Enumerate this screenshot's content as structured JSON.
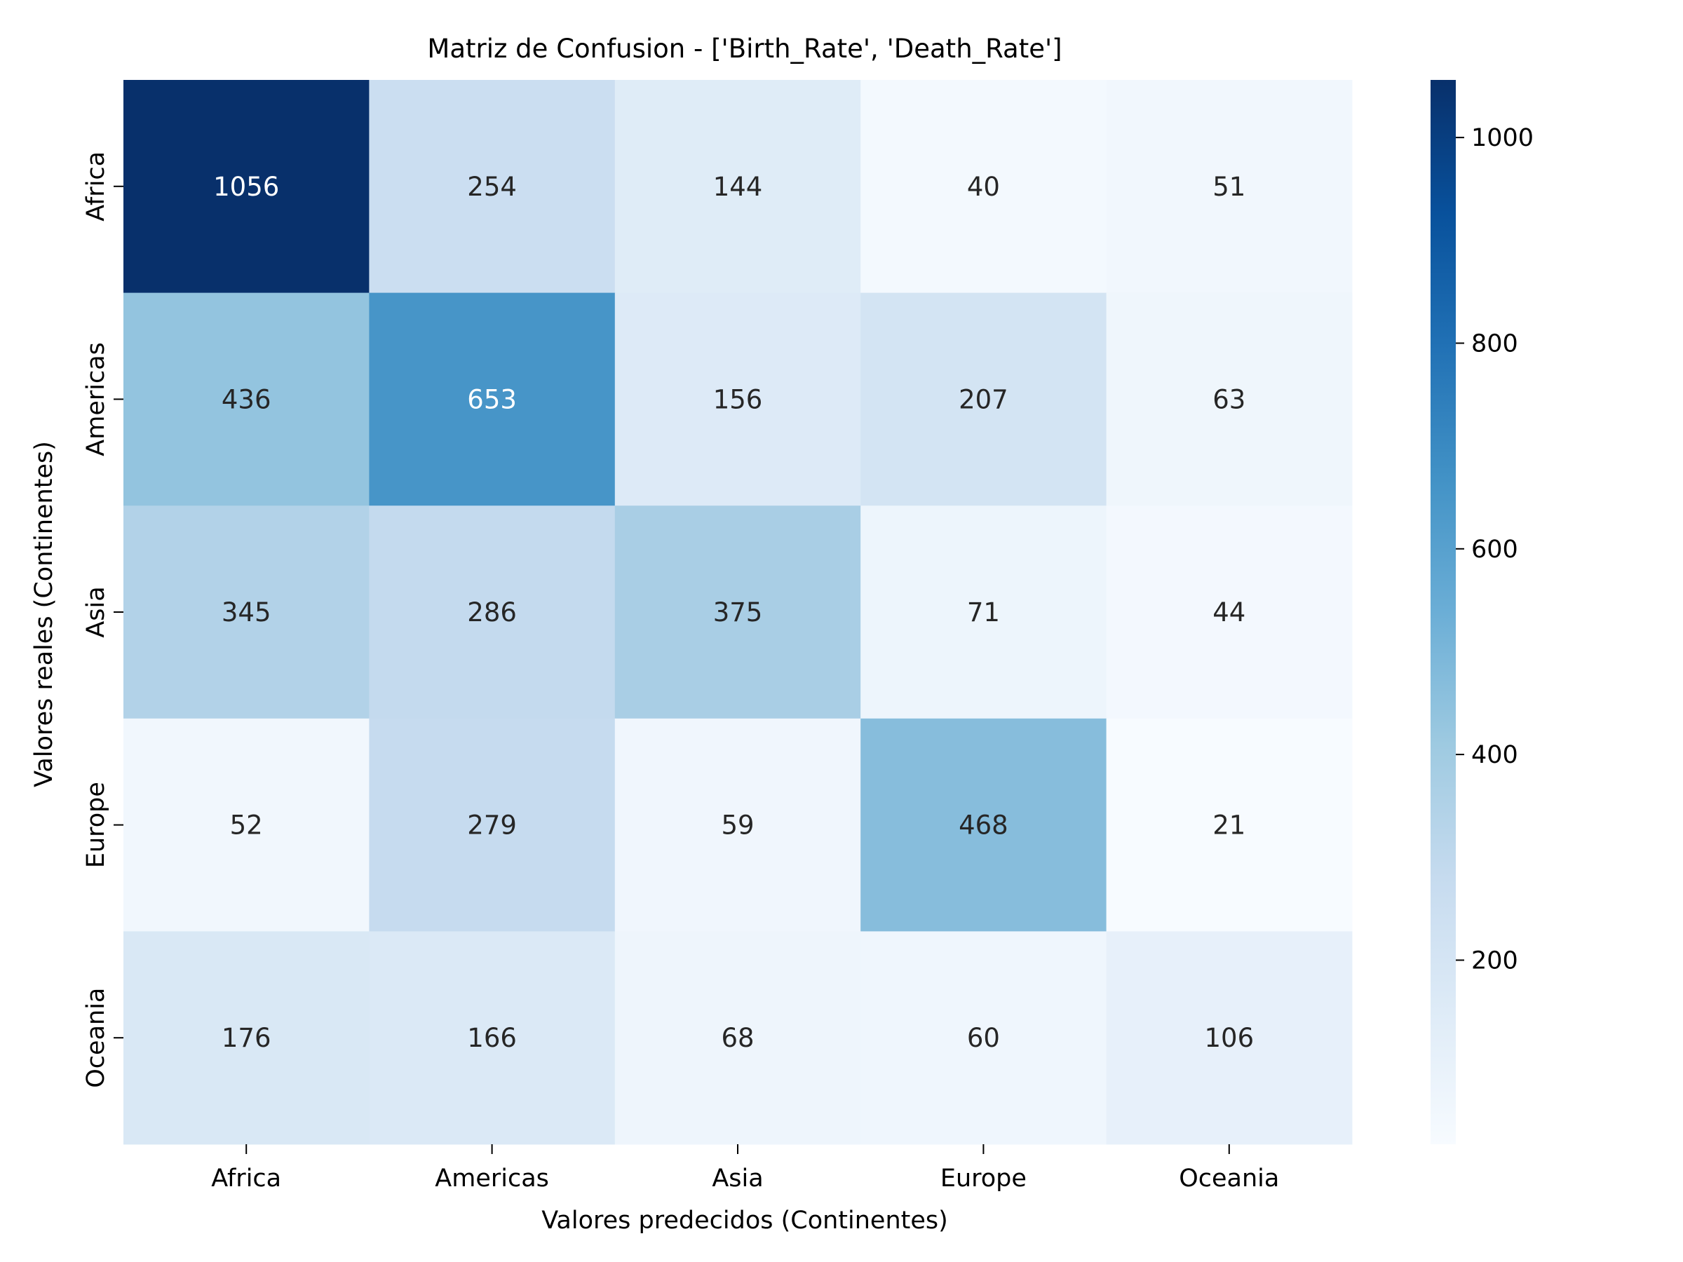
{
  "chart_data": {
    "type": "heatmap",
    "title": "Matriz de Confusion - ['Birth_Rate', 'Death_Rate']",
    "xlabel": "Valores predecidos (Continentes)",
    "ylabel": "Valores reales (Continentes)",
    "x_categories": [
      "Africa",
      "Americas",
      "Asia",
      "Europe",
      "Oceania"
    ],
    "y_categories": [
      "Africa",
      "Americas",
      "Asia",
      "Europe",
      "Oceania"
    ],
    "values": [
      [
        1056,
        254,
        144,
        40,
        51
      ],
      [
        436,
        653,
        156,
        207,
        63
      ],
      [
        345,
        286,
        375,
        71,
        44
      ],
      [
        52,
        279,
        59,
        468,
        21
      ],
      [
        176,
        166,
        68,
        60,
        106
      ]
    ],
    "colormap": "Blues",
    "colorbar": {
      "range": [
        21,
        1056
      ],
      "ticks": [
        200,
        400,
        600,
        800,
        1000
      ]
    },
    "colors": {
      "low": "#f7fbff",
      "high": "#08306b",
      "text_dark": "#262626",
      "text_light": "#ffffff"
    }
  }
}
